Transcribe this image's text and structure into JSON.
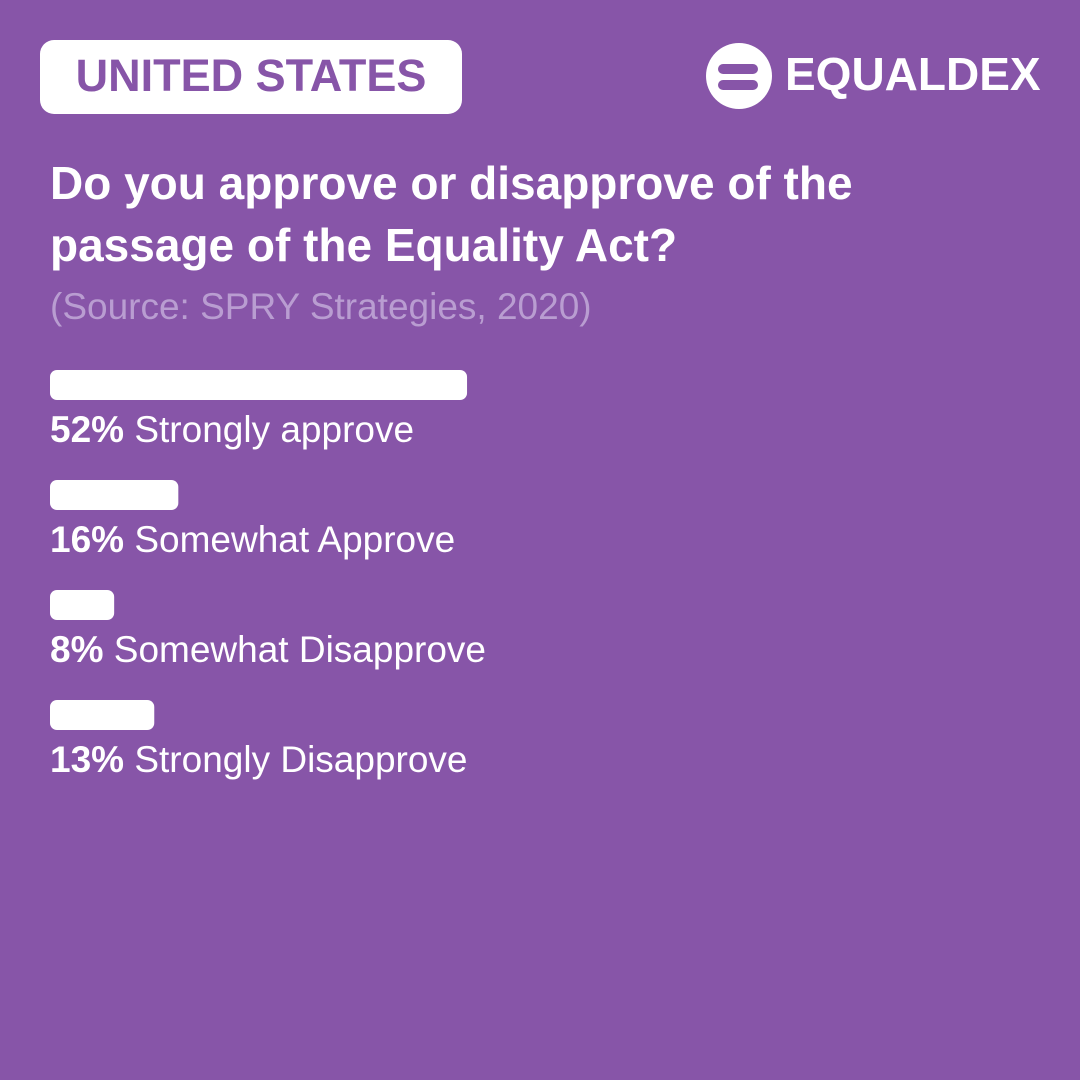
{
  "header": {
    "badge": "UNITED STATES",
    "brand": "EQUALDEX"
  },
  "chart_data": {
    "type": "bar",
    "orientation": "horizontal",
    "title": "Do you approve or disapprove of the passage of the Equality Act?",
    "subtitle": "(Source: SPRY Strategies, 2020)",
    "categories": [
      "Strongly approve",
      "Somewhat Approve",
      "Somewhat Disapprove",
      "Strongly Disapprove"
    ],
    "values": [
      52,
      16,
      8,
      13
    ],
    "value_labels": [
      "52%",
      "16%",
      "8%",
      "13%"
    ],
    "color": "#ffffff"
  }
}
